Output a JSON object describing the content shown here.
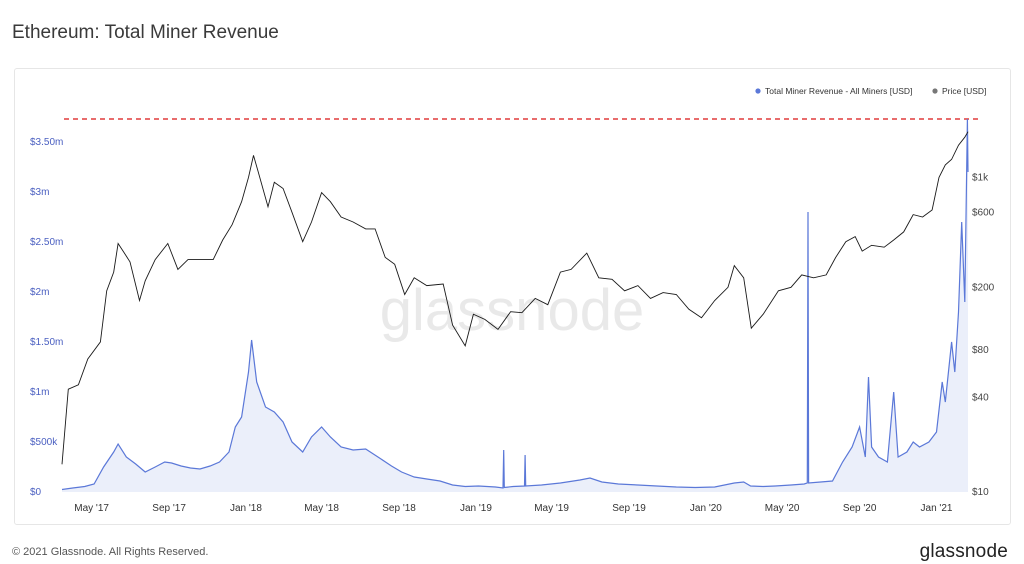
{
  "title": "Ethereum: Total Miner Revenue",
  "footer": {
    "copyright": "© 2021 Glassnode. All Rights Reserved.",
    "logo": "glassnode"
  },
  "watermark": "glassnode",
  "colors": {
    "revenue": "#5b78d8",
    "price": "#1a1a1a",
    "ath_line": "#e03b3b",
    "left_axis": "#4a5fc1",
    "right_axis": "#444444"
  },
  "chart_data": {
    "type": "line",
    "x_start": "2017-03-15",
    "x_end": "2021-02-20",
    "x_ticks": [
      {
        "label": "May '17",
        "date": "2017-05-01"
      },
      {
        "label": "Sep '17",
        "date": "2017-09-01"
      },
      {
        "label": "Jan '18",
        "date": "2018-01-01"
      },
      {
        "label": "May '18",
        "date": "2018-05-01"
      },
      {
        "label": "Sep '18",
        "date": "2018-09-01"
      },
      {
        "label": "Jan '19",
        "date": "2019-01-01"
      },
      {
        "label": "May '19",
        "date": "2019-05-01"
      },
      {
        "label": "Sep '19",
        "date": "2019-09-01"
      },
      {
        "label": "Jan '20",
        "date": "2020-01-01"
      },
      {
        "label": "May '20",
        "date": "2020-05-01"
      },
      {
        "label": "Sep '20",
        "date": "2020-09-01"
      },
      {
        "label": "Jan '21",
        "date": "2021-01-01"
      }
    ],
    "y_left": {
      "ylim": [
        0,
        3500000
      ],
      "ticks": [
        {
          "label": "$0",
          "value": 0
        },
        {
          "label": "$500k",
          "value": 500000
        },
        {
          "label": "$1m",
          "value": 1000000
        },
        {
          "label": "$1.50m",
          "value": 1500000
        },
        {
          "label": "$2m",
          "value": 2000000
        },
        {
          "label": "$2.50m",
          "value": 2500000
        },
        {
          "label": "$3m",
          "value": 3000000
        },
        {
          "label": "$3.50m",
          "value": 3500000
        }
      ]
    },
    "y_right": {
      "scale": "log",
      "ylim": [
        10,
        2000
      ],
      "ticks": [
        {
          "label": "$10",
          "value": 10
        },
        {
          "label": "$40",
          "value": 40
        },
        {
          "label": "$80",
          "value": 80
        },
        {
          "label": "$200",
          "value": 200
        },
        {
          "label": "$600",
          "value": 600
        },
        {
          "label": "$1k",
          "value": 1000
        }
      ]
    },
    "reference_line": {
      "value": 3730000,
      "style": "dashed"
    },
    "legend": {
      "placement": "top-right",
      "items": [
        {
          "name": "Total Miner Revenue - All Miners [USD]",
          "color": "#5b78d8"
        },
        {
          "name": "Price [USD]",
          "color": "#777777"
        }
      ]
    },
    "series": [
      {
        "name": "Total Miner Revenue - All Miners [USD]",
        "axis": "left",
        "points": [
          [
            "2017-03-15",
            25000
          ],
          [
            "2017-04-01",
            40000
          ],
          [
            "2017-04-20",
            55000
          ],
          [
            "2017-05-05",
            80000
          ],
          [
            "2017-05-20",
            250000
          ],
          [
            "2017-06-05",
            400000
          ],
          [
            "2017-06-12",
            480000
          ],
          [
            "2017-06-25",
            350000
          ],
          [
            "2017-07-10",
            280000
          ],
          [
            "2017-07-25",
            200000
          ],
          [
            "2017-08-10",
            250000
          ],
          [
            "2017-08-25",
            300000
          ],
          [
            "2017-09-05",
            290000
          ],
          [
            "2017-09-20",
            260000
          ],
          [
            "2017-10-05",
            240000
          ],
          [
            "2017-10-20",
            230000
          ],
          [
            "2017-11-05",
            260000
          ],
          [
            "2017-11-20",
            300000
          ],
          [
            "2017-12-05",
            400000
          ],
          [
            "2017-12-15",
            650000
          ],
          [
            "2017-12-25",
            750000
          ],
          [
            "2018-01-05",
            1200000
          ],
          [
            "2018-01-10",
            1520000
          ],
          [
            "2018-01-18",
            1100000
          ],
          [
            "2018-02-01",
            850000
          ],
          [
            "2018-02-15",
            800000
          ],
          [
            "2018-03-01",
            700000
          ],
          [
            "2018-03-15",
            500000
          ],
          [
            "2018-04-01",
            400000
          ],
          [
            "2018-04-15",
            550000
          ],
          [
            "2018-05-01",
            650000
          ],
          [
            "2018-05-15",
            550000
          ],
          [
            "2018-06-01",
            450000
          ],
          [
            "2018-06-20",
            420000
          ],
          [
            "2018-07-10",
            430000
          ],
          [
            "2018-08-01",
            340000
          ],
          [
            "2018-08-20",
            260000
          ],
          [
            "2018-09-05",
            200000
          ],
          [
            "2018-09-25",
            150000
          ],
          [
            "2018-10-15",
            130000
          ],
          [
            "2018-11-05",
            110000
          ],
          [
            "2018-11-25",
            70000
          ],
          [
            "2018-12-15",
            55000
          ],
          [
            "2019-01-05",
            60000
          ],
          [
            "2019-02-01",
            50000
          ],
          [
            "2019-02-13",
            40000
          ],
          [
            "2019-02-14",
            420000
          ],
          [
            "2019-02-15",
            45000
          ],
          [
            "2019-03-01",
            55000
          ],
          [
            "2019-03-19",
            60000
          ],
          [
            "2019-03-20",
            370000
          ],
          [
            "2019-03-21",
            60000
          ],
          [
            "2019-04-15",
            70000
          ],
          [
            "2019-05-15",
            90000
          ],
          [
            "2019-06-15",
            120000
          ],
          [
            "2019-07-01",
            140000
          ],
          [
            "2019-07-20",
            100000
          ],
          [
            "2019-08-15",
            80000
          ],
          [
            "2019-09-15",
            70000
          ],
          [
            "2019-10-15",
            60000
          ],
          [
            "2019-11-15",
            50000
          ],
          [
            "2019-12-15",
            45000
          ],
          [
            "2020-01-15",
            50000
          ],
          [
            "2020-02-15",
            90000
          ],
          [
            "2020-03-01",
            100000
          ],
          [
            "2020-03-12",
            60000
          ],
          [
            "2020-04-01",
            55000
          ],
          [
            "2020-04-20",
            60000
          ],
          [
            "2020-05-15",
            70000
          ],
          [
            "2020-06-05",
            80000
          ],
          [
            "2020-06-10",
            90000
          ],
          [
            "2020-06-11",
            2800000
          ],
          [
            "2020-06-12",
            90000
          ],
          [
            "2020-07-01",
            100000
          ],
          [
            "2020-07-20",
            110000
          ],
          [
            "2020-08-05",
            300000
          ],
          [
            "2020-08-20",
            450000
          ],
          [
            "2020-09-01",
            650000
          ],
          [
            "2020-09-10",
            350000
          ],
          [
            "2020-09-15",
            1150000
          ],
          [
            "2020-09-20",
            450000
          ],
          [
            "2020-10-01",
            350000
          ],
          [
            "2020-10-15",
            300000
          ],
          [
            "2020-10-25",
            1000000
          ],
          [
            "2020-11-01",
            350000
          ],
          [
            "2020-11-15",
            400000
          ],
          [
            "2020-11-25",
            500000
          ],
          [
            "2020-12-05",
            450000
          ],
          [
            "2020-12-20",
            500000
          ],
          [
            "2021-01-01",
            600000
          ],
          [
            "2021-01-10",
            1100000
          ],
          [
            "2021-01-15",
            900000
          ],
          [
            "2021-01-25",
            1500000
          ],
          [
            "2021-01-30",
            1200000
          ],
          [
            "2021-02-05",
            1800000
          ],
          [
            "2021-02-10",
            2700000
          ],
          [
            "2021-02-15",
            1900000
          ],
          [
            "2021-02-19",
            3730000
          ],
          [
            "2021-02-20",
            3200000
          ]
        ]
      },
      {
        "name": "Price [USD]",
        "axis": "right",
        "points": [
          [
            "2017-03-15",
            15
          ],
          [
            "2017-03-25",
            45
          ],
          [
            "2017-04-10",
            48
          ],
          [
            "2017-04-25",
            70
          ],
          [
            "2017-05-15",
            90
          ],
          [
            "2017-05-25",
            190
          ],
          [
            "2017-06-05",
            250
          ],
          [
            "2017-06-12",
            380
          ],
          [
            "2017-06-20",
            340
          ],
          [
            "2017-07-01",
            290
          ],
          [
            "2017-07-16",
            165
          ],
          [
            "2017-07-25",
            220
          ],
          [
            "2017-08-10",
            300
          ],
          [
            "2017-08-30",
            380
          ],
          [
            "2017-09-15",
            260
          ],
          [
            "2017-10-01",
            300
          ],
          [
            "2017-10-20",
            300
          ],
          [
            "2017-11-10",
            300
          ],
          [
            "2017-11-25",
            400
          ],
          [
            "2017-12-10",
            500
          ],
          [
            "2017-12-25",
            700
          ],
          [
            "2018-01-05",
            1000
          ],
          [
            "2018-01-13",
            1380
          ],
          [
            "2018-01-20",
            1100
          ],
          [
            "2018-02-05",
            650
          ],
          [
            "2018-02-15",
            930
          ],
          [
            "2018-03-01",
            850
          ],
          [
            "2018-03-15",
            600
          ],
          [
            "2018-04-01",
            390
          ],
          [
            "2018-04-15",
            520
          ],
          [
            "2018-05-01",
            800
          ],
          [
            "2018-05-15",
            700
          ],
          [
            "2018-06-01",
            560
          ],
          [
            "2018-06-20",
            520
          ],
          [
            "2018-07-10",
            470
          ],
          [
            "2018-07-25",
            470
          ],
          [
            "2018-08-10",
            310
          ],
          [
            "2018-08-25",
            280
          ],
          [
            "2018-09-10",
            180
          ],
          [
            "2018-09-25",
            230
          ],
          [
            "2018-10-15",
            205
          ],
          [
            "2018-11-10",
            210
          ],
          [
            "2018-11-25",
            115
          ],
          [
            "2018-12-15",
            85
          ],
          [
            "2018-12-28",
            135
          ],
          [
            "2019-01-15",
            125
          ],
          [
            "2019-02-05",
            108
          ],
          [
            "2019-02-25",
            140
          ],
          [
            "2019-03-15",
            138
          ],
          [
            "2019-04-05",
            170
          ],
          [
            "2019-04-25",
            155
          ],
          [
            "2019-05-15",
            250
          ],
          [
            "2019-06-01",
            260
          ],
          [
            "2019-06-26",
            330
          ],
          [
            "2019-07-15",
            230
          ],
          [
            "2019-08-05",
            225
          ],
          [
            "2019-08-25",
            190
          ],
          [
            "2019-09-15",
            205
          ],
          [
            "2019-10-05",
            170
          ],
          [
            "2019-10-25",
            185
          ],
          [
            "2019-11-15",
            180
          ],
          [
            "2019-12-05",
            145
          ],
          [
            "2019-12-25",
            128
          ],
          [
            "2020-01-15",
            165
          ],
          [
            "2020-02-05",
            200
          ],
          [
            "2020-02-15",
            275
          ],
          [
            "2020-03-01",
            230
          ],
          [
            "2020-03-13",
            110
          ],
          [
            "2020-04-01",
            135
          ],
          [
            "2020-04-25",
            190
          ],
          [
            "2020-05-15",
            200
          ],
          [
            "2020-06-01",
            240
          ],
          [
            "2020-06-20",
            230
          ],
          [
            "2020-07-10",
            240
          ],
          [
            "2020-07-25",
            310
          ],
          [
            "2020-08-10",
            390
          ],
          [
            "2020-08-25",
            420
          ],
          [
            "2020-09-05",
            340
          ],
          [
            "2020-09-20",
            370
          ],
          [
            "2020-10-10",
            360
          ],
          [
            "2020-10-25",
            400
          ],
          [
            "2020-11-10",
            450
          ],
          [
            "2020-11-25",
            580
          ],
          [
            "2020-12-10",
            560
          ],
          [
            "2020-12-25",
            620
          ],
          [
            "2021-01-05",
            1000
          ],
          [
            "2021-01-15",
            1200
          ],
          [
            "2021-01-25",
            1300
          ],
          [
            "2021-02-05",
            1600
          ],
          [
            "2021-02-15",
            1800
          ],
          [
            "2021-02-20",
            1950
          ]
        ]
      }
    ]
  }
}
